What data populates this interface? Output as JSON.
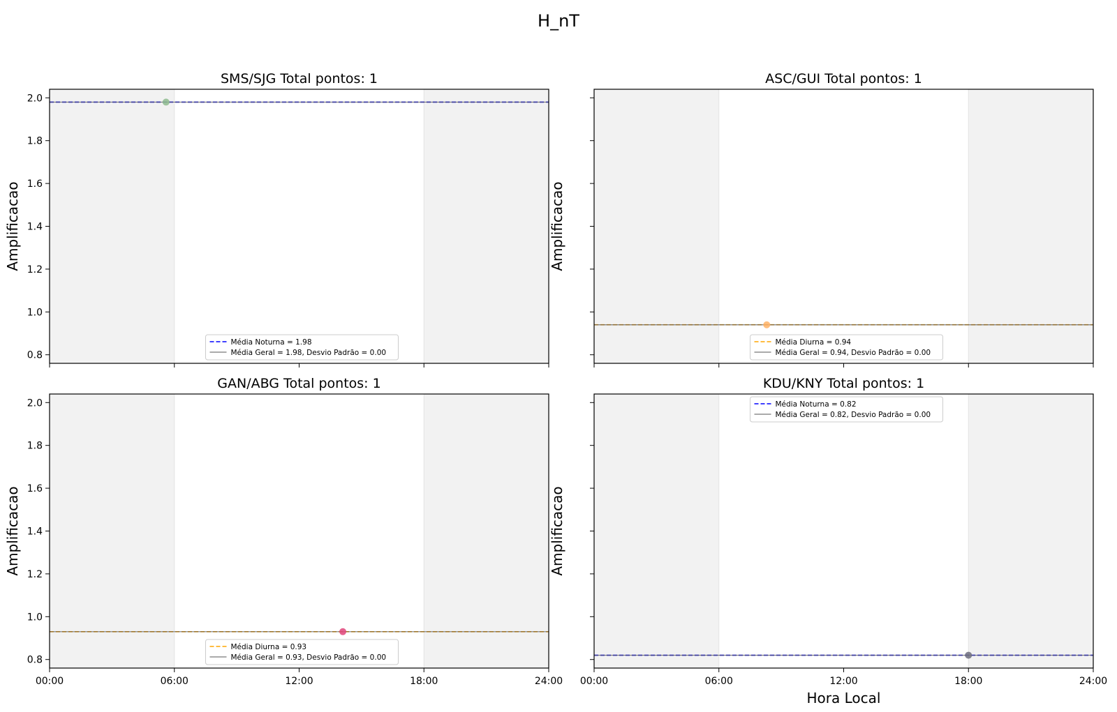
{
  "suptitle": "H_nT",
  "chart_data": [
    {
      "type": "scatter",
      "title": "SMS/SJG  Total pontos: 1",
      "xlabel": "",
      "ylabel": "Amplificacao",
      "xticks": [
        "00:00",
        "06:00",
        "12:00",
        "18:00",
        "24:00"
      ],
      "show_xticklabels": false,
      "show_yticklabels": true,
      "xlim": [
        0,
        24
      ],
      "ylim": [
        0.76,
        2.04
      ],
      "yticks": [
        0.8,
        1.0,
        1.2,
        1.4,
        1.6,
        1.8,
        2.0
      ],
      "ytick_labels": [
        "0.8",
        "1.0",
        "1.2",
        "1.4",
        "1.6",
        "1.8",
        "2.0"
      ],
      "night_shading_hours": [
        [
          0,
          6
        ],
        [
          18,
          24
        ]
      ],
      "points": [
        {
          "x": 5.6,
          "y": 1.98,
          "color": "#8fbc8f"
        }
      ],
      "lines": [
        {
          "label": "Média Noturna = 1.98",
          "y": 1.98,
          "color": "#0000ff",
          "style": "dashed"
        },
        {
          "label": "Média Geral = 1.98, Desvio Padrão = 0.00",
          "y": 1.98,
          "color": "#555555",
          "style": "solid"
        }
      ],
      "legend_position": "lower center"
    },
    {
      "type": "scatter",
      "title": "ASC/GUI  Total pontos: 1",
      "xlabel": "",
      "ylabel": "Amplificacao",
      "xticks": [
        "00:00",
        "06:00",
        "12:00",
        "18:00",
        "24:00"
      ],
      "show_xticklabels": false,
      "show_yticklabels": false,
      "xlim": [
        0,
        24
      ],
      "ylim": [
        0.76,
        2.04
      ],
      "yticks": [
        0.8,
        1.0,
        1.2,
        1.4,
        1.6,
        1.8,
        2.0
      ],
      "ytick_labels": [
        "0.8",
        "1.0",
        "1.2",
        "1.4",
        "1.6",
        "1.8",
        "2.0"
      ],
      "night_shading_hours": [
        [
          0,
          6
        ],
        [
          18,
          24
        ]
      ],
      "points": [
        {
          "x": 8.3,
          "y": 0.94,
          "color": "#ffb366"
        }
      ],
      "lines": [
        {
          "label": "Média Diurna = 0.94",
          "y": 0.94,
          "color": "#ffa500",
          "style": "dashed"
        },
        {
          "label": "Média Geral = 0.94, Desvio Padrão = 0.00",
          "y": 0.94,
          "color": "#555555",
          "style": "solid"
        }
      ],
      "legend_position": "lower center"
    },
    {
      "type": "scatter",
      "title": "GAN/ABG  Total pontos: 1",
      "xlabel": "",
      "ylabel": "Amplificacao",
      "xticks": [
        "00:00",
        "06:00",
        "12:00",
        "18:00",
        "24:00"
      ],
      "show_xticklabels": true,
      "show_yticklabels": true,
      "xlim": [
        0,
        24
      ],
      "ylim": [
        0.76,
        2.04
      ],
      "yticks": [
        0.8,
        1.0,
        1.2,
        1.4,
        1.6,
        1.8,
        2.0
      ],
      "ytick_labels": [
        "0.8",
        "1.0",
        "1.2",
        "1.4",
        "1.6",
        "1.8",
        "2.0"
      ],
      "night_shading_hours": [
        [
          0,
          6
        ],
        [
          18,
          24
        ]
      ],
      "points": [
        {
          "x": 14.1,
          "y": 0.93,
          "color": "#e0457b"
        }
      ],
      "lines": [
        {
          "label": "Média Diurna = 0.93",
          "y": 0.93,
          "color": "#ffa500",
          "style": "dashed"
        },
        {
          "label": "Média Geral = 0.93, Desvio Padrão = 0.00",
          "y": 0.93,
          "color": "#555555",
          "style": "solid"
        }
      ],
      "legend_position": "lower center"
    },
    {
      "type": "scatter",
      "title": "KDU/KNY  Total pontos: 1",
      "xlabel": "Hora Local",
      "ylabel": "Amplificacao",
      "xticks": [
        "00:00",
        "06:00",
        "12:00",
        "18:00",
        "24:00"
      ],
      "show_xticklabels": true,
      "show_yticklabels": false,
      "xlim": [
        0,
        24
      ],
      "ylim": [
        0.76,
        2.04
      ],
      "yticks": [
        0.8,
        1.0,
        1.2,
        1.4,
        1.6,
        1.8,
        2.0
      ],
      "ytick_labels": [
        "0.8",
        "1.0",
        "1.2",
        "1.4",
        "1.6",
        "1.8",
        "2.0"
      ],
      "night_shading_hours": [
        [
          0,
          6
        ],
        [
          18,
          24
        ]
      ],
      "points": [
        {
          "x": 18.0,
          "y": 0.82,
          "color": "#6e6e7e"
        }
      ],
      "lines": [
        {
          "label": "Média Noturna = 0.82",
          "y": 0.82,
          "color": "#0000ff",
          "style": "dashed"
        },
        {
          "label": "Média Geral = 0.82, Desvio Padrão = 0.00",
          "y": 0.82,
          "color": "#555555",
          "style": "solid"
        }
      ],
      "legend_position": "upper center"
    }
  ]
}
